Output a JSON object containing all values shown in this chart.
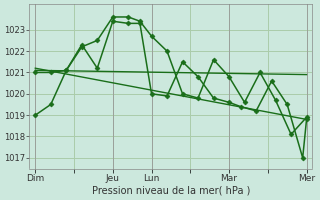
{
  "background_color": "#cce8dd",
  "grid_color": "#aaccaa",
  "line_color": "#1a6e1a",
  "xlabel": "Pression niveau de la mer( hPa )",
  "ylim": [
    1016.5,
    1024.2
  ],
  "yticks": [
    1017,
    1018,
    1019,
    1020,
    1021,
    1022,
    1023
  ],
  "xtick_labels": [
    "Dim",
    "",
    "Jeu",
    "Lun",
    "",
    "Mar",
    "",
    "Mer"
  ],
  "xtick_positions": [
    0,
    1,
    2,
    3,
    4,
    5,
    6,
    7
  ],
  "vlines": [
    0,
    2,
    3,
    5,
    7
  ],
  "line1_x": [
    0,
    0.4,
    0.8,
    1.2,
    1.6,
    2.0,
    2.4,
    2.7,
    3.0,
    3.4,
    3.8,
    4.2,
    4.6,
    5.0,
    5.4,
    5.8,
    6.2,
    6.6,
    7.0
  ],
  "line1_y": [
    1019.0,
    1019.5,
    1021.1,
    1022.2,
    1022.5,
    1023.6,
    1023.6,
    1023.4,
    1022.7,
    1022.0,
    1020.0,
    1019.8,
    1021.6,
    1020.8,
    1019.6,
    1021.0,
    1019.7,
    1018.1,
    1018.9
  ],
  "line2_x": [
    0,
    0.4,
    0.8,
    1.2,
    1.6,
    2.0,
    2.4,
    2.7,
    3.0,
    3.4,
    3.8,
    4.2,
    4.6,
    5.0,
    5.3,
    5.7,
    6.1,
    6.5,
    6.9,
    7.0
  ],
  "line2_y": [
    1021.0,
    1021.0,
    1021.1,
    1022.3,
    1021.2,
    1023.4,
    1023.3,
    1023.3,
    1020.0,
    1019.9,
    1021.5,
    1020.8,
    1019.8,
    1019.6,
    1019.4,
    1019.2,
    1020.6,
    1019.5,
    1017.0,
    1018.8
  ],
  "trend1_x": [
    0,
    7.0
  ],
  "trend1_y": [
    1021.1,
    1020.9
  ],
  "trend2_x": [
    0,
    7.0
  ],
  "trend2_y": [
    1021.2,
    1018.8
  ]
}
